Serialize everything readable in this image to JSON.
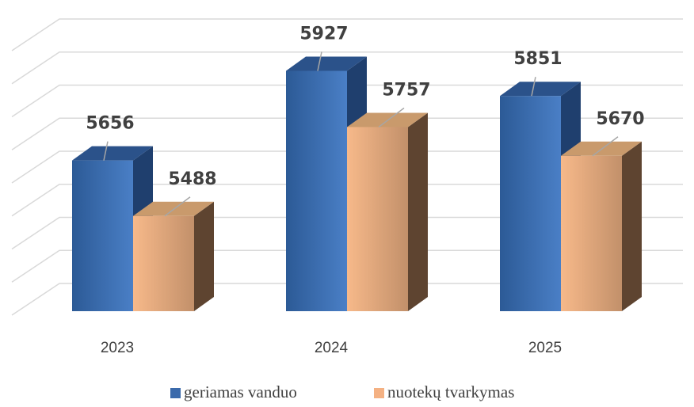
{
  "chart_data": {
    "type": "bar3d",
    "categories": [
      "2023",
      "2024",
      "2025"
    ],
    "series": [
      {
        "name": "geriamas vanduo",
        "color": "#3b6aab",
        "values": [
          5656,
          5927,
          5851
        ]
      },
      {
        "name": "nuotekų tvarkymas",
        "color": "#f4b183",
        "values": [
          5488,
          5757,
          5670
        ]
      }
    ],
    "ylim": [
      5200,
      6000
    ],
    "yticks": [
      5200,
      5300,
      5400,
      5500,
      5600,
      5700,
      5800,
      5900,
      6000
    ],
    "grid": true
  }
}
